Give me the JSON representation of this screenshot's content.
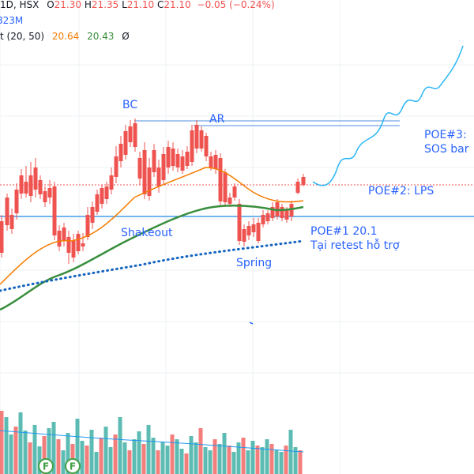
{
  "legend": {
    "symbol_line": "1D, HSX",
    "open_label": "O",
    "open": "21.30",
    "high_label": "H",
    "high": "21.35",
    "low_label": "L",
    "low": "21.10",
    "close_label": "C",
    "close": "21.10",
    "change": "−0.05 (−0.24%)",
    "volume": "823M",
    "indicator_name": "t (20, 50)",
    "ma_fast": "20.64",
    "ma_slow": "20.43",
    "visibility_icon": "Ø"
  },
  "annotations": {
    "bc": "BC",
    "ar": "AR",
    "shakeout": "Shakeout",
    "spring": "Spring",
    "poe1_line1": "POE#1 20.1",
    "poe1_line2": "Tại retest hỗ trợ",
    "poe2": "POE#2: LPS",
    "poe3_line1": "POE#3:",
    "poe3_line2": "SOS bar"
  },
  "markers": [
    "F",
    "F"
  ],
  "colors": {
    "up": "#26a69a",
    "down": "#ef5350",
    "ma_fast": "#f57c00",
    "ma_slow": "#388e3c",
    "support": "#2962ff",
    "projection": "#29b6f6",
    "dots": "#1565c0"
  }
}
